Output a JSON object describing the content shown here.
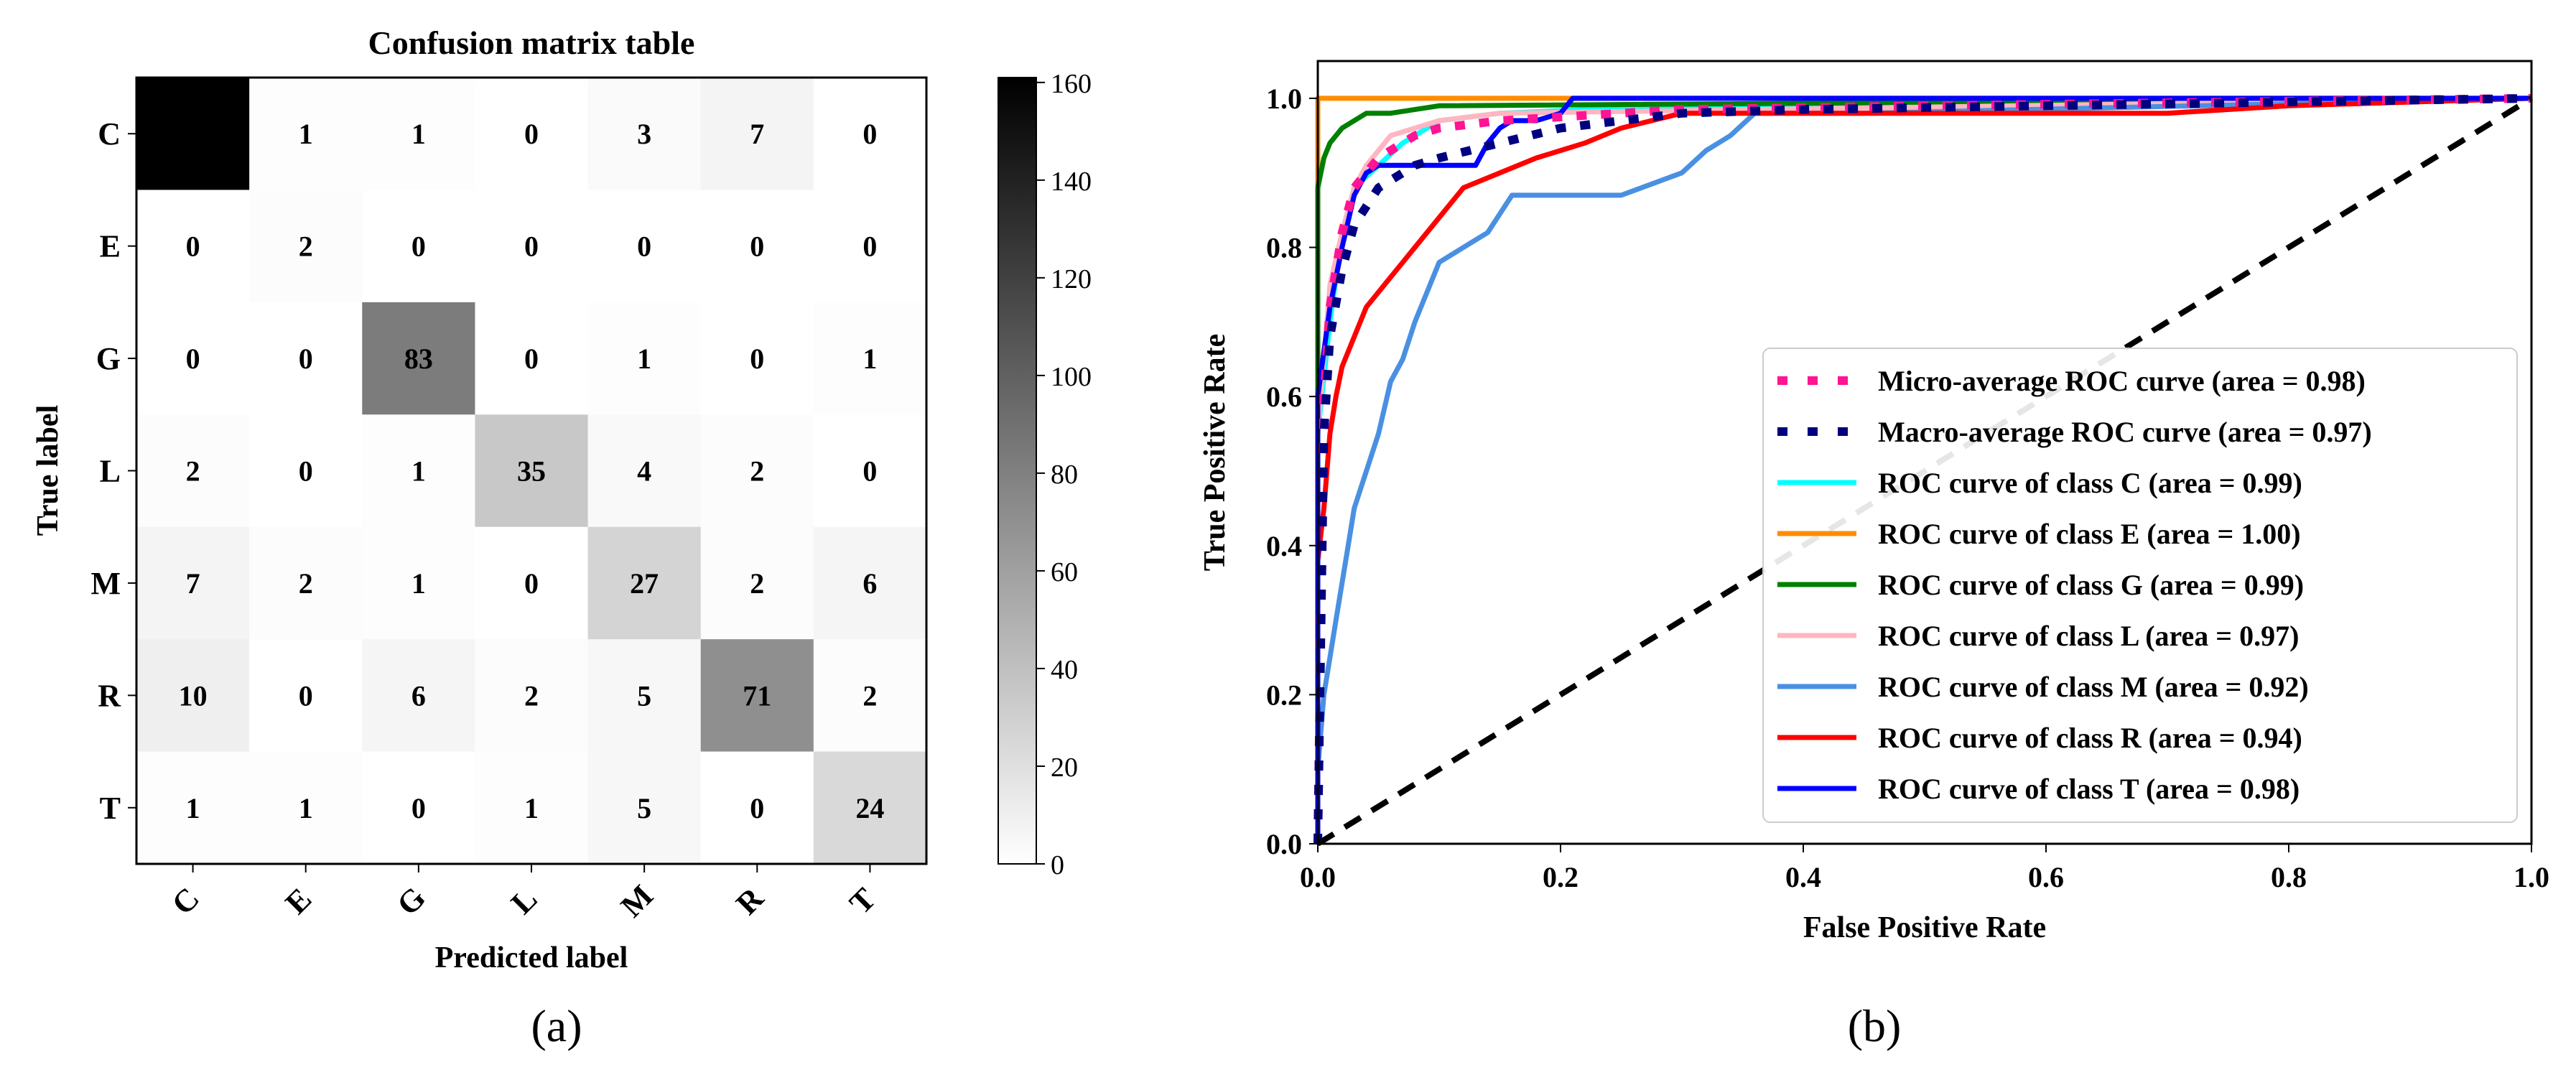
{
  "chart_data": [
    {
      "type": "heatmap",
      "title": "Confusion matrix table",
      "xlabel": "Predicted label",
      "ylabel": "True label",
      "row_labels": [
        "C",
        "E",
        "G",
        "L",
        "M",
        "R",
        "T"
      ],
      "col_labels": [
        "C",
        "E",
        "G",
        "L",
        "M",
        "R",
        "T"
      ],
      "matrix": [
        [
          161,
          1,
          1,
          0,
          3,
          7,
          0
        ],
        [
          0,
          2,
          0,
          0,
          0,
          0,
          0
        ],
        [
          0,
          0,
          83,
          0,
          1,
          0,
          1
        ],
        [
          2,
          0,
          1,
          35,
          4,
          2,
          0
        ],
        [
          7,
          2,
          1,
          0,
          27,
          2,
          6
        ],
        [
          10,
          0,
          6,
          2,
          5,
          71,
          2
        ],
        [
          1,
          1,
          0,
          1,
          5,
          0,
          24
        ]
      ],
      "colorbar": {
        "min": 0,
        "max": 161,
        "ticks": [
          0,
          20,
          40,
          60,
          80,
          100,
          120,
          140,
          160
        ]
      },
      "panel_label": "(a)"
    },
    {
      "type": "line",
      "xlabel": "False Positive Rate",
      "ylabel": "True Positive Rate",
      "xlim": [
        0,
        1
      ],
      "ylim": [
        0,
        1.05
      ],
      "xticks": [
        "0.0",
        "0.2",
        "0.4",
        "0.6",
        "0.8",
        "1.0"
      ],
      "yticks": [
        "0.0",
        "0.2",
        "0.4",
        "0.6",
        "0.8",
        "1.0"
      ],
      "legend_position": "lower-right",
      "panel_label": "(b)",
      "series": [
        {
          "name": "Micro-average ROC curve (area = 0.98)",
          "color": "#ff1493",
          "style": "dotted",
          "x": [
            0,
            0.005,
            0.01,
            0.02,
            0.03,
            0.05,
            0.08,
            0.1,
            0.15,
            0.2,
            0.3,
            0.5,
            1.0
          ],
          "y": [
            0,
            0.6,
            0.72,
            0.82,
            0.88,
            0.92,
            0.95,
            0.96,
            0.97,
            0.975,
            0.985,
            0.99,
            1.0
          ]
        },
        {
          "name": "Macro-average ROC curve (area = 0.97)",
          "color": "#000080",
          "style": "dotted",
          "x": [
            0,
            0.005,
            0.01,
            0.02,
            0.03,
            0.05,
            0.08,
            0.1,
            0.15,
            0.2,
            0.3,
            0.4,
            0.6,
            1.0
          ],
          "y": [
            0,
            0.55,
            0.68,
            0.77,
            0.83,
            0.88,
            0.91,
            0.92,
            0.94,
            0.96,
            0.98,
            0.985,
            0.99,
            1.0
          ]
        },
        {
          "name": "ROC curve of class C (area = 0.99)",
          "color": "#00ffff",
          "style": "solid",
          "x": [
            0,
            0,
            0.01,
            0.02,
            0.03,
            0.05,
            0.07,
            0.09,
            0.1,
            0.15,
            0.3,
            1.0
          ],
          "y": [
            0,
            0.55,
            0.7,
            0.82,
            0.88,
            0.91,
            0.94,
            0.96,
            0.97,
            0.98,
            0.99,
            1.0
          ]
        },
        {
          "name": "ROC curve of class E (area = 1.00)",
          "color": "#ff8c00",
          "style": "solid",
          "x": [
            0,
            0,
            1.0
          ],
          "y": [
            0,
            1.0,
            1.0
          ]
        },
        {
          "name": "ROC curve of class G (area = 0.99)",
          "color": "#008000",
          "style": "solid",
          "x": [
            0,
            0,
            0.005,
            0.01,
            0.02,
            0.04,
            0.06,
            0.1,
            1.0
          ],
          "y": [
            0,
            0.88,
            0.92,
            0.94,
            0.96,
            0.98,
            0.98,
            0.99,
            1.0
          ]
        },
        {
          "name": "ROC curve of class L (area = 0.97)",
          "color": "#ffb6c1",
          "style": "solid",
          "x": [
            0,
            0,
            0.01,
            0.02,
            0.03,
            0.04,
            0.05,
            0.06,
            0.08,
            0.1,
            0.15,
            1.0
          ],
          "y": [
            0,
            0.55,
            0.75,
            0.82,
            0.88,
            0.91,
            0.93,
            0.95,
            0.96,
            0.97,
            0.98,
            1.0
          ]
        },
        {
          "name": "ROC curve of class M (area = 0.92)",
          "color": "#4a90e2",
          "style": "solid",
          "x": [
            0,
            0,
            0.005,
            0.01,
            0.015,
            0.02,
            0.025,
            0.03,
            0.04,
            0.05,
            0.06,
            0.07,
            0.08,
            0.09,
            0.1,
            0.12,
            0.14,
            0.16,
            0.2,
            0.25,
            0.3,
            0.32,
            0.34,
            0.36,
            0.4,
            0.45,
            1.0
          ],
          "y": [
            0,
            0.1,
            0.2,
            0.25,
            0.3,
            0.35,
            0.4,
            0.45,
            0.5,
            0.55,
            0.62,
            0.65,
            0.7,
            0.74,
            0.78,
            0.8,
            0.82,
            0.87,
            0.87,
            0.87,
            0.9,
            0.93,
            0.95,
            0.98,
            0.98,
            0.98,
            1.0
          ]
        },
        {
          "name": "ROC curve of class R (area = 0.94)",
          "color": "#ff0000",
          "style": "solid",
          "x": [
            0,
            0,
            0.005,
            0.01,
            0.015,
            0.02,
            0.03,
            0.04,
            0.05,
            0.06,
            0.07,
            0.08,
            0.1,
            0.12,
            0.15,
            0.18,
            0.2,
            0.22,
            0.25,
            0.3,
            0.4,
            0.5,
            0.6,
            0.7,
            0.8,
            0.9,
            1.0
          ],
          "y": [
            0,
            0.38,
            0.45,
            0.55,
            0.6,
            0.64,
            0.68,
            0.72,
            0.74,
            0.76,
            0.78,
            0.8,
            0.84,
            0.88,
            0.9,
            0.92,
            0.93,
            0.94,
            0.96,
            0.98,
            0.98,
            0.98,
            0.98,
            0.98,
            0.99,
            0.995,
            1.0
          ]
        },
        {
          "name": "ROC curve of class T (area = 0.98)",
          "color": "#0000ff",
          "style": "solid",
          "x": [
            0,
            0,
            0.01,
            0.02,
            0.03,
            0.04,
            0.05,
            0.1,
            0.13,
            0.14,
            0.15,
            0.16,
            0.18,
            0.2,
            0.21,
            0.3,
            1.0
          ],
          "y": [
            0,
            0.6,
            0.72,
            0.8,
            0.87,
            0.9,
            0.91,
            0.91,
            0.91,
            0.94,
            0.96,
            0.97,
            0.97,
            0.98,
            1.0,
            1.0,
            1.0
          ]
        },
        {
          "name": "",
          "color": "#000000",
          "style": "dashed",
          "x": [
            0,
            1
          ],
          "y": [
            0,
            1
          ]
        }
      ]
    }
  ]
}
